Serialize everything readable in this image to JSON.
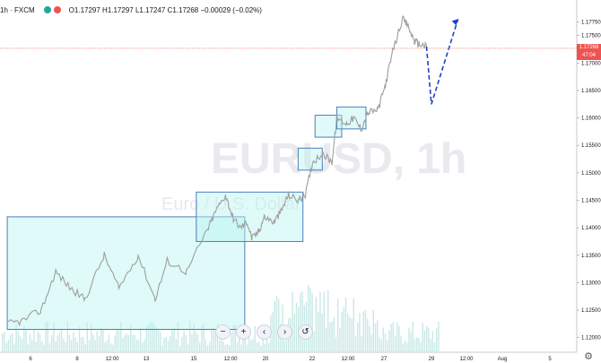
{
  "legend": {
    "symbol": "1h · FXCM",
    "ohlc_text": "O1.17297 H1.17297 L1.17247 C1.17268 −0.00029 (−0.02%)"
  },
  "watermark": {
    "title": "EURUSD, 1h",
    "subtitle": "Euro / U.S. Dollar"
  },
  "last_price": {
    "value": 1.17268,
    "label": "1.17268",
    "countdown": "47:04"
  },
  "nav_buttons": [
    {
      "name": "zoom-out-button",
      "label": "−"
    },
    {
      "name": "zoom-in-button",
      "label": "+"
    },
    {
      "name": "scroll-left-button",
      "label": "‹"
    },
    {
      "name": "scroll-right-button",
      "label": "›"
    },
    {
      "name": "reset-button",
      "label": "↺"
    }
  ],
  "colors": {
    "accent_red": "#ef5350",
    "candle": "#9e9e9e",
    "box_fill": "#b8f5ef",
    "box_stroke": "#4a7fbd",
    "projection": "#2140c8",
    "volume": "#b2dfdb"
  },
  "chart_data": {
    "type": "line",
    "title": "EURUSD, 1h",
    "subtitle": "Euro / U.S. Dollar",
    "ylim": [
      1.1175,
      1.1805
    ],
    "y_ticks": [
      "1.17750",
      "1.17500",
      "1.17000",
      "1.16500",
      "1.16000",
      "1.15500",
      "1.15000",
      "1.14500",
      "1.14000",
      "1.13500",
      "1.13000",
      "1.12500",
      "1.12000"
    ],
    "x_ticks": [
      "6",
      "8",
      "12:00",
      "13",
      "15",
      "12:00",
      "20",
      "22",
      "12:00",
      "27",
      "29",
      "12:00",
      "Aug",
      "5"
    ],
    "price_path": {
      "x": [
        0.0,
        0.6,
        1.4,
        2.0,
        2.6,
        3.2,
        4.0,
        4.6,
        5.4,
        6.1,
        6.6,
        7.4,
        8.3,
        8.6,
        9.0,
        9.3,
        9.6,
        9.9,
        10.1,
        10.4,
        10.6,
        11.0,
        11.3,
        11.6,
        12.0,
        12.3,
        12.6,
        13.0,
        13.4,
        13.6,
        14.0,
        14.3,
        14.6,
        14.9,
        15.3,
        15.6,
        15.9,
        16.3,
        16.5,
        16.8,
        17.0,
        17.3
      ],
      "y": [
        1.1225,
        1.123,
        1.125,
        1.132,
        1.129,
        1.127,
        1.135,
        1.129,
        1.135,
        1.127,
        1.134,
        1.132,
        1.14,
        1.143,
        1.146,
        1.142,
        1.14,
        1.141,
        1.138,
        1.1395,
        1.142,
        1.141,
        1.143,
        1.146,
        1.145,
        1.146,
        1.152,
        1.1535,
        1.152,
        1.16,
        1.159,
        1.16,
        1.158,
        1.161,
        1.1615,
        1.166,
        1.172,
        1.178,
        1.177,
        1.174,
        1.1735,
        1.173
      ]
    },
    "projection": {
      "x": [
        17.3,
        17.5,
        18.6
      ],
      "y": [
        1.173,
        1.1625,
        1.178
      ]
    },
    "boxes": [
      {
        "x0": 0.0,
        "x1": 9.8,
        "y0": 1.1215,
        "y1": 1.142
      },
      {
        "x0": 7.8,
        "x1": 12.2,
        "y0": 1.1375,
        "y1": 1.1465
      },
      {
        "x0": 12.0,
        "x1": 13.0,
        "y0": 1.1505,
        "y1": 1.1545
      },
      {
        "x0": 12.7,
        "x1": 13.8,
        "y0": 1.1565,
        "y1": 1.1605
      },
      {
        "x0": 13.6,
        "x1": 14.8,
        "y0": 1.158,
        "y1": 1.162
      }
    ],
    "xlim": [
      -0.3,
      23.5
    ]
  }
}
